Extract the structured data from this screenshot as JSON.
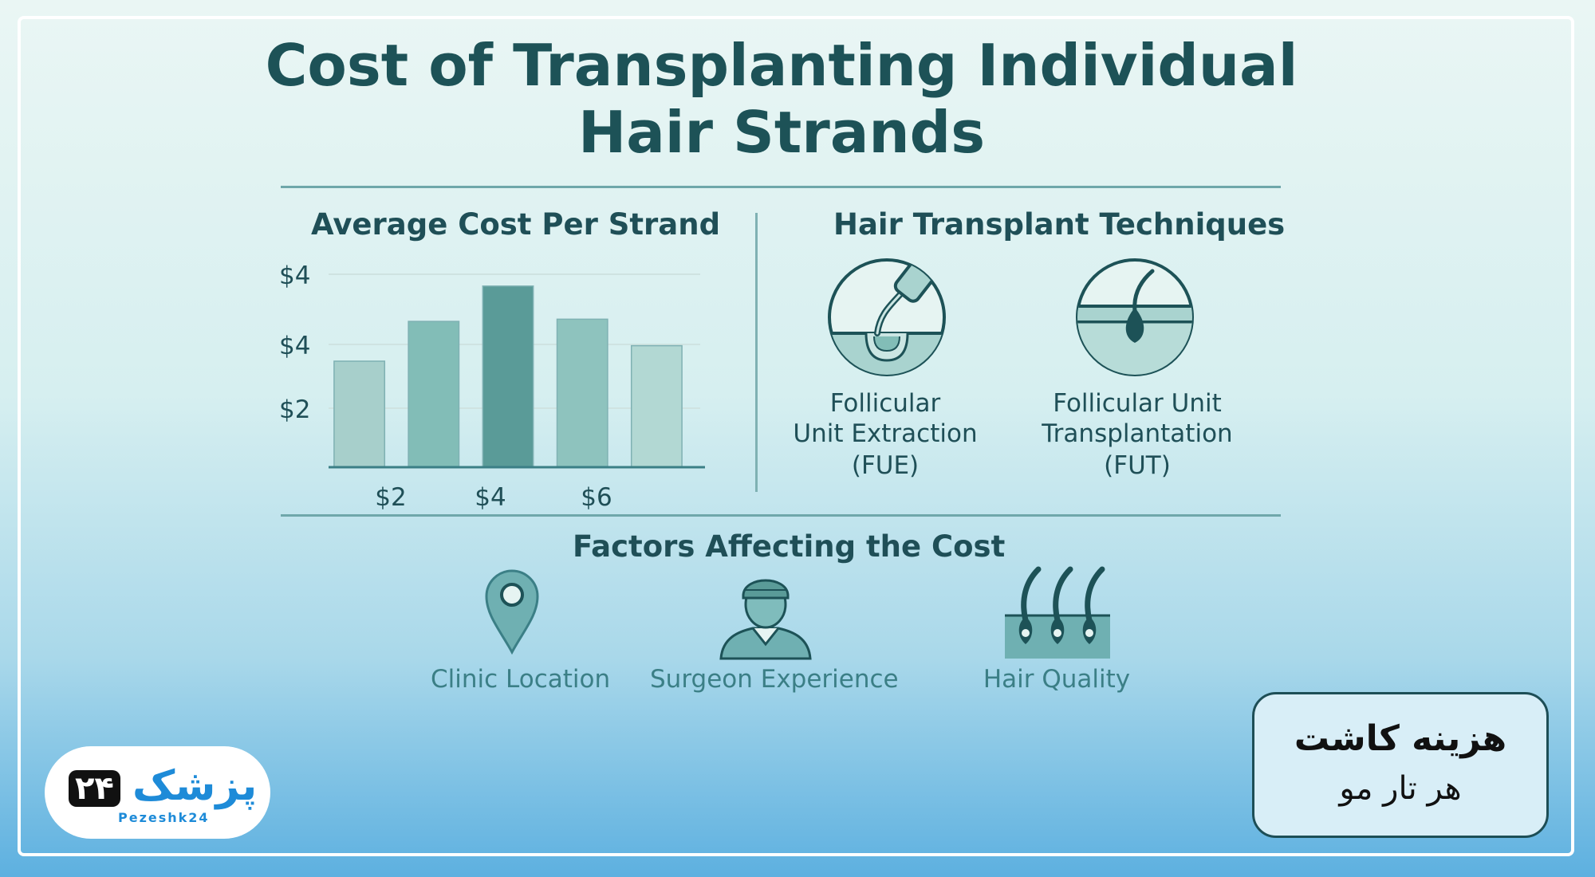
{
  "title": "Cost of Transplanting Individual Hair Strands",
  "chart_data": {
    "type": "bar",
    "title": "Average Cost Per Strand",
    "categories": [
      "",
      "",
      "",
      "",
      ""
    ],
    "x_tick_labels": [
      "$2",
      "$4",
      "$6"
    ],
    "y_tick_labels": [
      "$4",
      "$4",
      "$2"
    ],
    "values": [
      2.4,
      3.3,
      4.1,
      3.35,
      2.75
    ],
    "bar_colors": [
      "#a7cfcb",
      "#82bdb7",
      "#5a9b98",
      "#8ec3be",
      "#b2d8d3"
    ],
    "ylim": [
      0,
      4.8
    ],
    "grid": true,
    "xlabel": "",
    "ylabel": ""
  },
  "techniques": {
    "title": "Hair Transplant Techniques",
    "items": [
      {
        "line1": "Follicular",
        "line2": "Unit Extraction",
        "line3": "(FUE)",
        "icon": "fue-icon"
      },
      {
        "line1": "Follicular Unit",
        "line2": "Transplantation",
        "line3": "(FUT)",
        "icon": "fut-icon"
      }
    ]
  },
  "factors": {
    "title": "Factors Affecting the Cost",
    "items": [
      {
        "label": "Clinic Location",
        "icon": "location-pin-icon"
      },
      {
        "label": "Surgeon Experience",
        "icon": "surgeon-icon"
      },
      {
        "label": "Hair Quality",
        "icon": "hair-follicles-icon"
      }
    ]
  },
  "logo": {
    "mark": "پزشک",
    "digits": "۲۴",
    "text": "Pezeshk24"
  },
  "badge": {
    "line1": "هزینه کاشت",
    "line2": "هر تار مو"
  },
  "colors": {
    "accent": "#1d5257",
    "teal": "#5a9b98",
    "brand_blue": "#1e8bd8"
  }
}
